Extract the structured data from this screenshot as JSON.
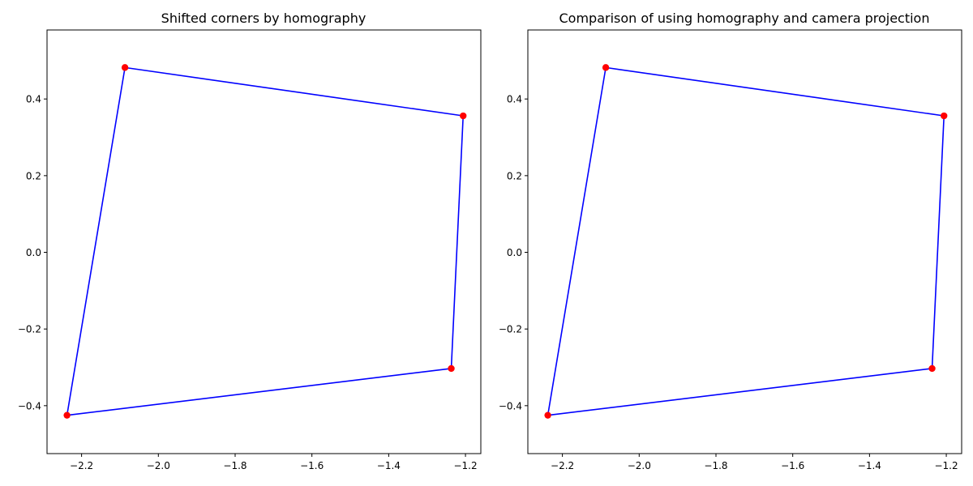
{
  "chart_data": [
    {
      "type": "line",
      "title": "Shifted corners by homography",
      "xlabel": "",
      "ylabel": "",
      "xlim": [
        -2.29,
        -1.16
      ],
      "ylim": [
        -0.525,
        0.58
      ],
      "x_ticks": [
        "−2.2",
        "−2.0",
        "−1.8",
        "−1.6",
        "−1.4",
        "−1.2"
      ],
      "y_ticks": [
        "−0.4",
        "−0.2",
        "0.0",
        "0.2",
        "0.4"
      ],
      "grid": false,
      "series": [
        {
          "type": "line",
          "color": "#0000ff",
          "x": [
            -2.087,
            -1.206,
            -1.237,
            -2.238,
            -2.087
          ],
          "y": [
            0.482,
            0.356,
            -0.303,
            -0.425,
            0.482
          ]
        },
        {
          "type": "scatter",
          "color": "#ff0000",
          "x": [
            -2.087,
            -1.206,
            -1.237,
            -2.238
          ],
          "y": [
            0.482,
            0.356,
            -0.303,
            -0.425
          ]
        }
      ]
    },
    {
      "type": "line",
      "title": "Comparison of using homography and camera projection",
      "xlabel": "",
      "ylabel": "",
      "xlim": [
        -2.29,
        -1.16
      ],
      "ylim": [
        -0.525,
        0.58
      ],
      "x_ticks": [
        "−2.2",
        "−2.0",
        "−1.8",
        "−1.6",
        "−1.4",
        "−1.2"
      ],
      "y_ticks": [
        "−0.4",
        "−0.2",
        "0.0",
        "0.2",
        "0.4"
      ],
      "grid": false,
      "series": [
        {
          "type": "line",
          "color": "#0000ff",
          "x": [
            -2.087,
            -1.206,
            -1.237,
            -2.238,
            -2.087
          ],
          "y": [
            0.482,
            0.356,
            -0.303,
            -0.425,
            0.482
          ]
        },
        {
          "type": "scatter",
          "color": "#ff0000",
          "x": [
            -2.087,
            -1.206,
            -1.237,
            -2.238
          ],
          "y": [
            0.482,
            0.356,
            -0.303,
            -0.425
          ]
        }
      ]
    }
  ]
}
